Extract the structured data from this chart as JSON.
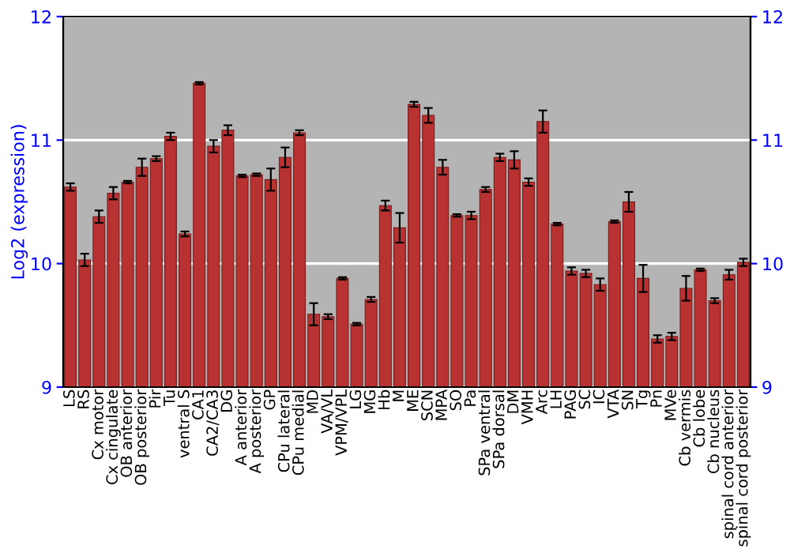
{
  "chart_data": {
    "type": "bar",
    "ylabel": "Log2 (expression)",
    "categories": [
      "LS",
      "RS",
      "Cx motor",
      "Cx cingulate",
      "OB anterior",
      "OB posterior",
      "Pir",
      "Tu",
      "ventral S",
      "CA1",
      "CA2/CA3",
      "DG",
      "A anterior",
      "A posterior",
      "GP",
      "CPu lateral",
      "CPu medial",
      "MD",
      "VA/VL",
      "VPM/VPL",
      "LG",
      "MG",
      "Hb",
      "M",
      "ME",
      "SCN",
      "MPA",
      "SO",
      "Pa",
      "SPa ventral",
      "SPa dorsal",
      "DM",
      "VMH",
      "Arc",
      "LH",
      "PAG",
      "SC",
      "IC",
      "VTA",
      "SN",
      "Tg",
      "Pn",
      "MVe",
      "Cb vermis",
      "Cb lobe",
      "Cb nucleus",
      "spinal cord anterior",
      "spinal cord posterior"
    ],
    "series": [
      {
        "color": "#b83232",
        "values": [
          10.62,
          10.03,
          10.38,
          10.57,
          10.66,
          10.78,
          10.85,
          11.03,
          10.24,
          11.46,
          10.95,
          11.08,
          10.71,
          10.72,
          10.68,
          10.86,
          11.06,
          9.59,
          9.57,
          9.88,
          9.51,
          9.71,
          10.47,
          10.29,
          11.29,
          11.2,
          10.78,
          10.39,
          10.39,
          10.6,
          10.86,
          10.84,
          10.66,
          11.15,
          10.32,
          9.94,
          9.92,
          9.83,
          10.34,
          10.5,
          9.88,
          9.39,
          9.41,
          9.8,
          9.95,
          9.7,
          9.91,
          10.01
        ],
        "errors": [
          0.03,
          0.05,
          0.05,
          0.05,
          0.01,
          0.07,
          0.02,
          0.03,
          0.02,
          0.01,
          0.05,
          0.04,
          0.01,
          0.01,
          0.09,
          0.08,
          0.02,
          0.09,
          0.02,
          0.01,
          0.01,
          0.02,
          0.04,
          0.12,
          0.02,
          0.06,
          0.06,
          0.01,
          0.03,
          0.02,
          0.03,
          0.07,
          0.03,
          0.09,
          0.01,
          0.03,
          0.03,
          0.05,
          0.01,
          0.08,
          0.11,
          0.03,
          0.03,
          0.1,
          0.01,
          0.02,
          0.04,
          0.03
        ]
      }
    ],
    "ylim": [
      9,
      12
    ],
    "yticks": [
      9,
      10,
      11,
      12
    ],
    "y2lim": [
      9,
      12
    ],
    "y2ticks": [
      9,
      10,
      11,
      12
    ],
    "grid": "y"
  }
}
